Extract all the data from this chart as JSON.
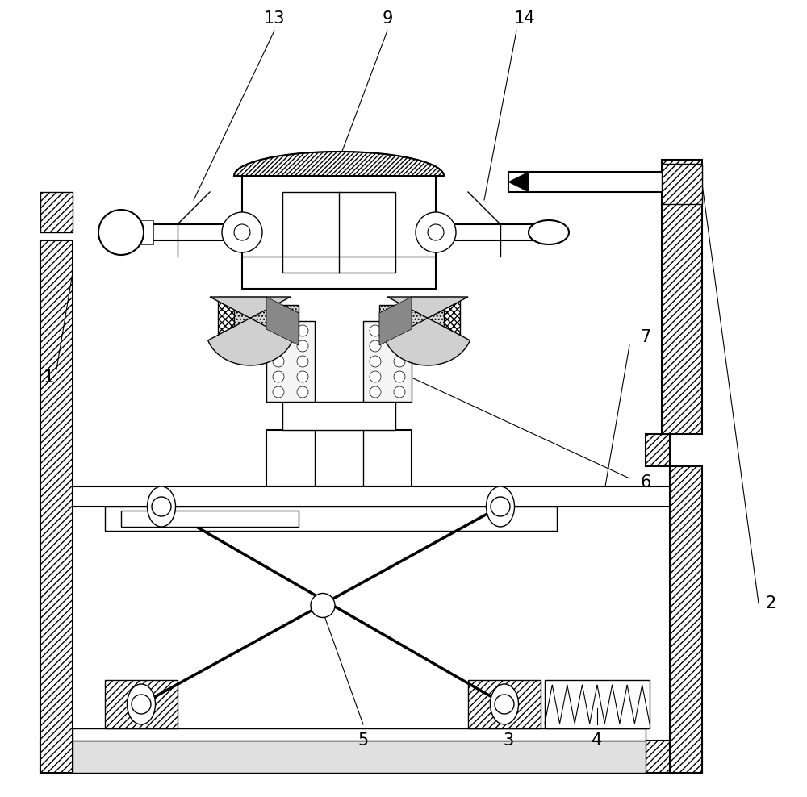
{
  "bg_color": "#ffffff",
  "line_color": "#000000",
  "lw": 1.0,
  "lw2": 1.5,
  "label_fontsize": 15
}
